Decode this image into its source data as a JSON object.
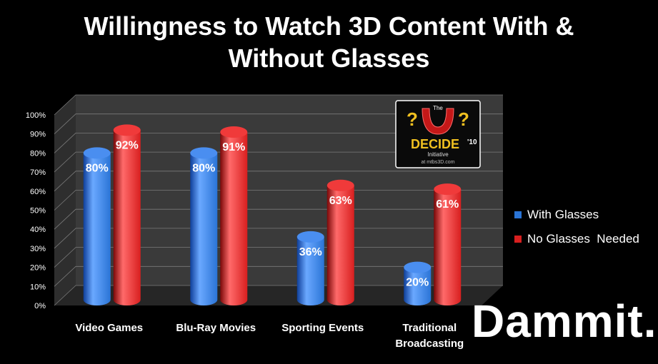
{
  "title_line1": "Willingness to Watch 3D Content With &",
  "title_line2": "Without Glasses",
  "brand": "Dammit.",
  "logo": {
    "text_top": "The",
    "text_main": "DECIDE",
    "text_year": "'10",
    "text_sub": "Initiative",
    "text_url": "at mtbs3D.com"
  },
  "colors": {
    "with_glasses": "#2a74d6",
    "no_glasses": "#d81f1f",
    "wall": "#3a3a3a",
    "floor": "#262626"
  },
  "chart_data": {
    "type": "bar",
    "title": "Willingness to Watch 3D Content With & Without Glasses",
    "categories": [
      "Video Games",
      "Blu-Ray Movies",
      "Sporting Events",
      "Traditional Broadcasting"
    ],
    "category_lines": [
      [
        "Video Games"
      ],
      [
        "Blu-Ray Movies"
      ],
      [
        "Sporting Events"
      ],
      [
        "Traditional",
        "Broadcasting"
      ]
    ],
    "series": [
      {
        "name": "With Glasses",
        "values": [
          80,
          80,
          36,
          20
        ],
        "labels": [
          "80%",
          "80%",
          "36%",
          "20%"
        ]
      },
      {
        "name": "No Glasses  Needed",
        "values": [
          92,
          91,
          63,
          61
        ],
        "labels": [
          "92%",
          "91%",
          "63%",
          "61%"
        ]
      }
    ],
    "ylim": [
      0,
      100
    ],
    "yticks": [
      "0%",
      "10%",
      "20%",
      "30%",
      "40%",
      "50%",
      "60%",
      "70%",
      "80%",
      "90%",
      "100%"
    ],
    "legend_position": "right",
    "grid": true
  }
}
